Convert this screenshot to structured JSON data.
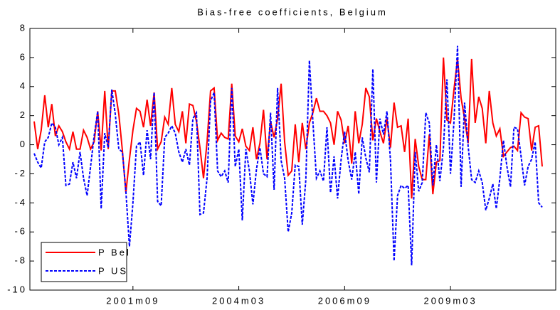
{
  "chart_data": {
    "type": "line",
    "title": "Bias-free coefficients, Belgium",
    "categories": [
      null,
      null,
      null,
      null,
      null,
      null,
      null,
      null,
      null,
      null,
      null,
      null,
      null,
      null,
      null,
      null,
      null,
      null,
      null,
      null,
      null,
      null,
      null,
      null,
      null,
      null,
      null,
      null,
      "2001m09",
      null,
      null,
      null,
      null,
      null,
      null,
      null,
      null,
      null,
      null,
      null,
      null,
      null,
      null,
      null,
      null,
      null,
      null,
      null,
      null,
      null,
      null,
      null,
      null,
      null,
      null,
      null,
      null,
      null,
      "2004m03",
      null,
      null,
      null,
      null,
      null,
      null,
      null,
      null,
      null,
      null,
      null,
      null,
      null,
      null,
      null,
      null,
      null,
      null,
      null,
      null,
      null,
      null,
      null,
      null,
      null,
      null,
      null,
      null,
      null,
      "2006m09",
      null,
      null,
      null,
      null,
      null,
      null,
      null,
      null,
      null,
      null,
      null,
      null,
      null,
      null,
      null,
      null,
      null,
      null,
      null,
      null,
      null,
      null,
      null,
      null,
      null,
      null,
      null,
      null,
      null,
      "2009m03",
      null,
      null,
      null,
      null,
      null,
      null,
      null,
      null,
      null,
      null,
      null,
      null,
      null,
      null,
      null,
      null,
      null,
      null,
      null,
      null,
      null,
      null,
      null,
      null,
      null,
      null
    ],
    "series": [
      {
        "name": "P Bel",
        "color": "#ff0000",
        "dash": false,
        "values": [
          1.6,
          -0.3,
          1.0,
          3.4,
          1.2,
          2.8,
          0.6,
          1.3,
          0.9,
          0.2,
          -0.3,
          0.9,
          -0.3,
          -0.3,
          1.0,
          0.5,
          -0.3,
          0.2,
          2.3,
          -0.4,
          3.7,
          -0.3,
          3.7,
          3.7,
          2.1,
          -0.4,
          -3.3,
          -1.0,
          1.0,
          2.5,
          2.3,
          1.2,
          3.1,
          1.3,
          3.6,
          -0.3,
          0.2,
          1.9,
          1.4,
          3.9,
          1.4,
          0.9,
          2.3,
          0.1,
          2.8,
          2.7,
          1.6,
          -0.2,
          -2.3,
          0.2,
          3.7,
          3.9,
          0.3,
          0.8,
          0.5,
          0.4,
          4.2,
          0.6,
          0.2,
          1.1,
          -0.1,
          -0.4,
          1.2,
          -1.0,
          0.1,
          2.4,
          -1.0,
          1.6,
          0.5,
          1.8,
          4.2,
          0.2,
          -2.1,
          -1.8,
          1.4,
          -1.2,
          1.5,
          -0.3,
          1.5,
          2.2,
          3.2,
          2.3,
          2.3,
          2.0,
          1.5,
          0.0,
          2.3,
          1.7,
          0.1,
          1.3,
          -1.3,
          2.3,
          0.1,
          1.4,
          3.9,
          3.3,
          0.3,
          1.8,
          0.9,
          0.1,
          1.8,
          -0.2,
          2.9,
          1.2,
          1.3,
          -0.5,
          1.8,
          -3.7,
          0.4,
          -1.5,
          -2.4,
          -2.4,
          0.7,
          -3.4,
          -1.2,
          -1.1,
          6.0,
          1.7,
          1.5,
          3.8,
          5.9,
          3.2,
          1.8,
          0.1,
          5.9,
          1.5,
          3.3,
          2.5,
          0.1,
          3.7,
          1.5,
          0.6,
          1.1,
          -0.8,
          -0.5,
          -0.2,
          -0.1,
          -0.4,
          2.2,
          1.9,
          1.8,
          -0.4,
          1.2,
          1.3,
          -1.5
        ]
      },
      {
        "name": "P US",
        "color": "#0000ff",
        "dash": true,
        "values": [
          -0.6,
          -1.2,
          -1.6,
          0.2,
          0.5,
          1.5,
          1.2,
          0.0,
          0.5,
          -2.8,
          -2.7,
          -1.2,
          -2.3,
          -0.5,
          -2.3,
          -3.5,
          -1.5,
          0.6,
          2.3,
          -4.4,
          0.8,
          -0.2,
          3.8,
          2.1,
          -0.3,
          -0.5,
          -3.2,
          -7.0,
          -4.0,
          -0.1,
          0.2,
          -2.1,
          1.0,
          -1.0,
          3.6,
          -3.9,
          -4.2,
          0.5,
          0.8,
          1.3,
          0.8,
          -0.5,
          -1.2,
          -0.3,
          -1.4,
          1.8,
          2.2,
          -4.8,
          -4.7,
          -2.3,
          3.0,
          3.6,
          -1.8,
          -2.2,
          -1.8,
          -2.6,
          3.9,
          -1.5,
          -0.3,
          -5.2,
          -0.3,
          -1.8,
          -4.1,
          -1.7,
          -0.2,
          -2.0,
          -2.2,
          2.2,
          -3.1,
          3.9,
          -1.1,
          -2.3,
          -6.0,
          -4.7,
          -1.4,
          -1.5,
          -5.5,
          -2.4,
          5.8,
          1.6,
          -2.3,
          -1.8,
          -2.5,
          1.2,
          -3.3,
          -0.8,
          -3.7,
          -1.0,
          0.9,
          -1.1,
          -2.4,
          -0.5,
          -3.4,
          0.5,
          -0.9,
          -1.9,
          5.2,
          -2.6,
          1.8,
          0.7,
          2.3,
          -1.1,
          -8.0,
          -3.5,
          -2.8,
          -3.0,
          -2.8,
          -8.3,
          -0.5,
          -3.2,
          -2.6,
          2.2,
          1.5,
          -2.8,
          0.0,
          -2.5,
          -0.2,
          4.5,
          -2.0,
          1.6,
          6.8,
          -2.9,
          2.9,
          -0.1,
          -2.4,
          -2.6,
          -1.8,
          -2.6,
          -4.5,
          -3.7,
          -2.7,
          -4.4,
          -2.3,
          0.3,
          -1.5,
          -2.9,
          1.2,
          1.1,
          -0.8,
          -2.8,
          -1.5,
          -1.0,
          0.2,
          -4.0,
          -4.3
        ]
      }
    ],
    "ylim": [
      -10,
      8
    ],
    "yticks": [
      -10,
      -8,
      -6,
      -4,
      -2,
      0,
      2,
      4,
      6,
      8
    ],
    "legend": "lower left",
    "grid": false
  }
}
